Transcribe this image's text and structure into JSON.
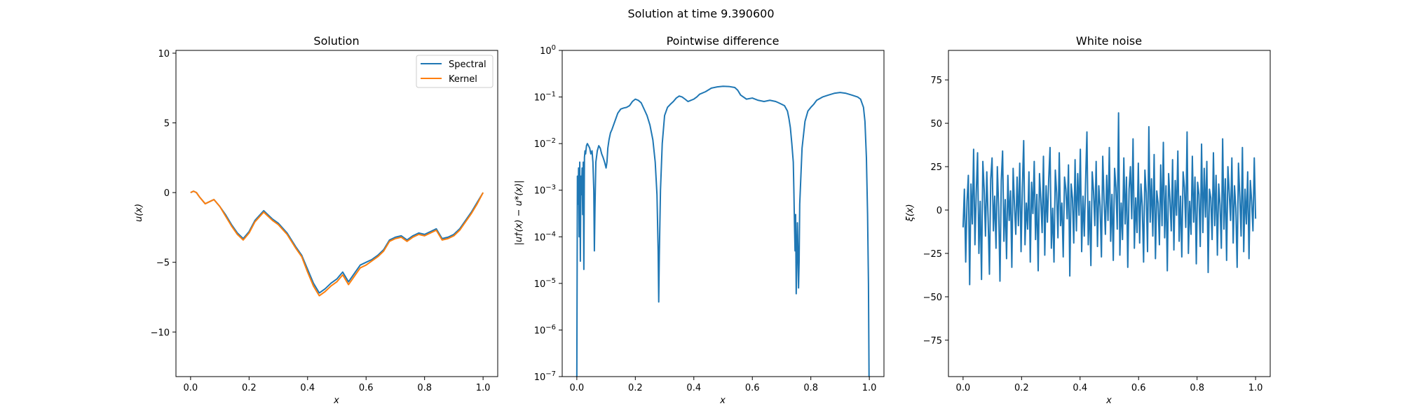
{
  "figure": {
    "suptitle": "Solution at time 9.390600"
  },
  "chart_data": [
    {
      "type": "line",
      "title": "Solution",
      "xlabel": "x",
      "ylabel": "u(x)",
      "xlim": [
        -0.05,
        1.05
      ],
      "ylim": [
        -13.2,
        10.2
      ],
      "xticks": [
        0.0,
        0.2,
        0.4,
        0.6,
        0.8,
        1.0
      ],
      "xtick_labels": [
        "0.0",
        "0.2",
        "0.4",
        "0.6",
        "0.8",
        "1.0"
      ],
      "yticks": [
        -10,
        -5,
        0,
        5,
        10
      ],
      "ytick_labels": [
        "−10",
        "−5",
        "0",
        "5",
        "10"
      ],
      "legend": {
        "position": "upper-right"
      },
      "series": [
        {
          "name": "Spectral",
          "color": "#1f77b4",
          "x": [
            0.0,
            0.01,
            0.02,
            0.03,
            0.05,
            0.07,
            0.08,
            0.1,
            0.12,
            0.14,
            0.16,
            0.18,
            0.2,
            0.22,
            0.25,
            0.28,
            0.3,
            0.33,
            0.36,
            0.38,
            0.4,
            0.42,
            0.44,
            0.46,
            0.48,
            0.5,
            0.52,
            0.54,
            0.56,
            0.58,
            0.6,
            0.62,
            0.64,
            0.66,
            0.68,
            0.7,
            0.72,
            0.74,
            0.76,
            0.78,
            0.8,
            0.82,
            0.84,
            0.86,
            0.88,
            0.9,
            0.92,
            0.94,
            0.96,
            0.98,
            1.0
          ],
          "y": [
            0.0,
            0.1,
            0.0,
            -0.3,
            -0.8,
            -0.6,
            -0.5,
            -1.0,
            -1.6,
            -2.3,
            -2.9,
            -3.3,
            -2.8,
            -2.0,
            -1.3,
            -1.9,
            -2.2,
            -2.9,
            -3.9,
            -4.5,
            -5.5,
            -6.5,
            -7.2,
            -6.9,
            -6.5,
            -6.2,
            -5.7,
            -6.4,
            -5.8,
            -5.2,
            -5.0,
            -4.8,
            -4.5,
            -4.1,
            -3.4,
            -3.2,
            -3.1,
            -3.4,
            -3.1,
            -2.9,
            -3.0,
            -2.8,
            -2.6,
            -3.3,
            -3.2,
            -3.0,
            -2.6,
            -2.0,
            -1.4,
            -0.7,
            0.0
          ]
        },
        {
          "name": "Kernel",
          "color": "#ff7f0e",
          "x": [
            0.0,
            0.01,
            0.02,
            0.03,
            0.05,
            0.07,
            0.08,
            0.1,
            0.12,
            0.14,
            0.16,
            0.18,
            0.2,
            0.22,
            0.25,
            0.28,
            0.3,
            0.33,
            0.36,
            0.38,
            0.4,
            0.42,
            0.44,
            0.46,
            0.48,
            0.5,
            0.52,
            0.54,
            0.56,
            0.58,
            0.6,
            0.62,
            0.64,
            0.66,
            0.68,
            0.7,
            0.72,
            0.74,
            0.76,
            0.78,
            0.8,
            0.82,
            0.84,
            0.86,
            0.88,
            0.9,
            0.92,
            0.94,
            0.96,
            0.98,
            1.0
          ],
          "y": [
            0.0,
            0.1,
            0.0,
            -0.3,
            -0.8,
            -0.6,
            -0.5,
            -1.0,
            -1.7,
            -2.4,
            -3.0,
            -3.4,
            -2.9,
            -2.1,
            -1.4,
            -2.0,
            -2.3,
            -3.0,
            -4.0,
            -4.6,
            -5.7,
            -6.7,
            -7.4,
            -7.1,
            -6.7,
            -6.4,
            -5.9,
            -6.6,
            -6.0,
            -5.4,
            -5.2,
            -4.9,
            -4.6,
            -4.2,
            -3.5,
            -3.3,
            -3.2,
            -3.5,
            -3.2,
            -3.0,
            -3.1,
            -2.9,
            -2.7,
            -3.4,
            -3.3,
            -3.1,
            -2.7,
            -2.1,
            -1.5,
            -0.8,
            0.0
          ]
        }
      ]
    },
    {
      "type": "line",
      "title": "Pointwise difference",
      "xlabel": "x",
      "ylabel": "|u†(x) − u*(x)|",
      "yscale": "log",
      "xlim": [
        -0.05,
        1.05
      ],
      "ylim": [
        1e-07,
        1
      ],
      "xticks": [
        0.0,
        0.2,
        0.4,
        0.6,
        0.8,
        1.0
      ],
      "xtick_labels": [
        "0.0",
        "0.2",
        "0.4",
        "0.6",
        "0.8",
        "1.0"
      ],
      "yticks": [
        -7,
        -6,
        -5,
        -4,
        -3,
        -2,
        -1,
        0
      ],
      "ytick_base": "10",
      "ytick_exponents": [
        "−7",
        "−6",
        "−5",
        "−4",
        "−3",
        "−2",
        "−1",
        "0"
      ],
      "series": [
        {
          "color": "#1f77b4",
          "x": [
            0.0,
            0.002,
            0.004,
            0.006,
            0.008,
            0.01,
            0.012,
            0.014,
            0.016,
            0.018,
            0.02,
            0.022,
            0.024,
            0.026,
            0.028,
            0.03,
            0.033,
            0.036,
            0.04,
            0.044,
            0.048,
            0.052,
            0.055,
            0.058,
            0.06,
            0.062,
            0.065,
            0.07,
            0.075,
            0.08,
            0.085,
            0.09,
            0.095,
            0.1,
            0.103,
            0.106,
            0.11,
            0.115,
            0.12,
            0.13,
            0.14,
            0.15,
            0.16,
            0.17,
            0.18,
            0.19,
            0.2,
            0.21,
            0.22,
            0.23,
            0.24,
            0.25,
            0.26,
            0.268,
            0.274,
            0.278,
            0.28,
            0.282,
            0.286,
            0.292,
            0.3,
            0.31,
            0.32,
            0.33,
            0.34,
            0.35,
            0.36,
            0.37,
            0.38,
            0.39,
            0.4,
            0.41,
            0.42,
            0.44,
            0.46,
            0.48,
            0.5,
            0.52,
            0.54,
            0.55,
            0.56,
            0.58,
            0.6,
            0.62,
            0.64,
            0.66,
            0.68,
            0.69,
            0.7,
            0.71,
            0.72,
            0.725,
            0.73,
            0.735,
            0.74,
            0.742,
            0.744,
            0.746,
            0.748,
            0.75,
            0.752,
            0.754,
            0.756,
            0.758,
            0.76,
            0.762,
            0.766,
            0.77,
            0.78,
            0.79,
            0.8,
            0.81,
            0.82,
            0.84,
            0.86,
            0.88,
            0.9,
            0.92,
            0.94,
            0.96,
            0.97,
            0.98,
            0.985,
            0.99,
            0.994,
            0.997,
            0.999,
            1.0
          ],
          "y": [
            1e-07,
            0.002,
            0.0005,
            0.003,
            0.0001,
            0.004,
            3e-05,
            0.002,
            0.0008,
            0.003,
            0.0003,
            0.004,
            2e-05,
            0.005,
            0.007,
            0.006,
            0.009,
            0.01,
            0.009,
            0.008,
            0.006,
            0.007,
            0.004,
            0.001,
            5e-05,
            0.0004,
            0.004,
            0.007,
            0.009,
            0.008,
            0.006,
            0.005,
            0.004,
            0.003,
            0.004,
            0.008,
            0.012,
            0.017,
            0.02,
            0.03,
            0.045,
            0.055,
            0.058,
            0.06,
            0.065,
            0.08,
            0.09,
            0.085,
            0.075,
            0.055,
            0.04,
            0.025,
            0.012,
            0.004,
            0.0008,
            5e-05,
            4e-06,
            4e-05,
            0.001,
            0.01,
            0.04,
            0.06,
            0.07,
            0.08,
            0.095,
            0.105,
            0.1,
            0.09,
            0.08,
            0.085,
            0.09,
            0.1,
            0.115,
            0.13,
            0.155,
            0.165,
            0.17,
            0.168,
            0.16,
            0.14,
            0.11,
            0.09,
            0.095,
            0.085,
            0.08,
            0.085,
            0.08,
            0.075,
            0.07,
            0.065,
            0.05,
            0.035,
            0.022,
            0.01,
            0.004,
            0.001,
            0.0002,
            5e-05,
            0.0003,
            6e-06,
            3e-05,
            0.0002,
            5e-05,
            8e-06,
            3e-05,
            0.0005,
            0.002,
            0.008,
            0.03,
            0.05,
            0.06,
            0.07,
            0.085,
            0.1,
            0.11,
            0.12,
            0.125,
            0.12,
            0.11,
            0.1,
            0.09,
            0.06,
            0.03,
            0.005,
            0.0003,
            1e-05,
            1e-07,
            1e-07
          ]
        }
      ]
    },
    {
      "type": "line",
      "title": "White noise",
      "xlabel": "x",
      "ylabel": "ξ(x)",
      "xlim": [
        -0.05,
        1.05
      ],
      "ylim": [
        -96,
        92
      ],
      "xticks": [
        0.0,
        0.2,
        0.4,
        0.6,
        0.8,
        1.0
      ],
      "xtick_labels": [
        "0.0",
        "0.2",
        "0.4",
        "0.6",
        "0.8",
        "1.0"
      ],
      "yticks": [
        -75,
        -50,
        -25,
        0,
        25,
        50,
        75
      ],
      "ytick_labels": [
        "−75",
        "−50",
        "−25",
        "0",
        "25",
        "50",
        "75"
      ],
      "series": [
        {
          "color": "#1f77b4",
          "x_range": [
            0.0,
            1.0
          ],
          "y": [
            -10,
            12,
            -30,
            5,
            20,
            -43,
            15,
            -8,
            35,
            -20,
            10,
            33,
            -25,
            5,
            -40,
            28,
            12,
            -15,
            22,
            -5,
            -37,
            18,
            30,
            -12,
            8,
            -22,
            25,
            2,
            -41,
            17,
            34,
            -18,
            6,
            -28,
            20,
            -6,
            11,
            -33,
            24,
            3,
            -14,
            19,
            -9,
            27,
            -24,
            13,
            40,
            -20,
            4,
            -11,
            22,
            -30,
            16,
            -2,
            28,
            -17,
            9,
            -35,
            21,
            6,
            -13,
            31,
            -26,
            14,
            -7,
            18,
            36,
            -22,
            1,
            -30,
            23,
            10,
            -16,
            33,
            -9,
            4,
            -27,
            19,
            12,
            -5,
            26,
            -38,
            15,
            7,
            -19,
            29,
            -12,
            21,
            -3,
            35,
            -24,
            8,
            -15,
            17,
            45,
            -20,
            5,
            -32,
            22,
            11,
            -9,
            28,
            -21,
            14,
            2,
            -27,
            31,
            6,
            -14,
            20,
            -6,
            36,
            -18,
            9,
            -29,
            24,
            13,
            -11,
            56,
            -26,
            4,
            -17,
            30,
            -8,
            19,
            -33,
            12,
            25,
            -5,
            41,
            -22,
            7,
            -13,
            27,
            -19,
            15,
            2,
            -30,
            23,
            10,
            -24,
            48,
            -7,
            18,
            -15,
            32,
            -28,
            11,
            4,
            -20,
            26,
            -9,
            39,
            -16,
            14,
            -35,
            21,
            6,
            -12,
            29,
            -23,
            17,
            -3,
            34,
            -18,
            8,
            -27,
            22,
            13,
            -10,
            45,
            -25,
            5,
            -14,
            31,
            -7,
            19,
            -31,
            16,
            9,
            -21,
            38,
            -13,
            24,
            -4,
            28,
            -36,
            12,
            7,
            -17,
            33,
            -9,
            20,
            -26,
            15,
            3,
            -22,
            41,
            -11,
            18,
            -29,
            25,
            10,
            -6,
            30,
            -19,
            14,
            1,
            -33,
            27,
            8,
            -15,
            36,
            -24,
            12,
            -8,
            22,
            -28,
            17,
            5,
            -12,
            30,
            -5
          ],
          "note_y_count": 0
        }
      ]
    }
  ]
}
